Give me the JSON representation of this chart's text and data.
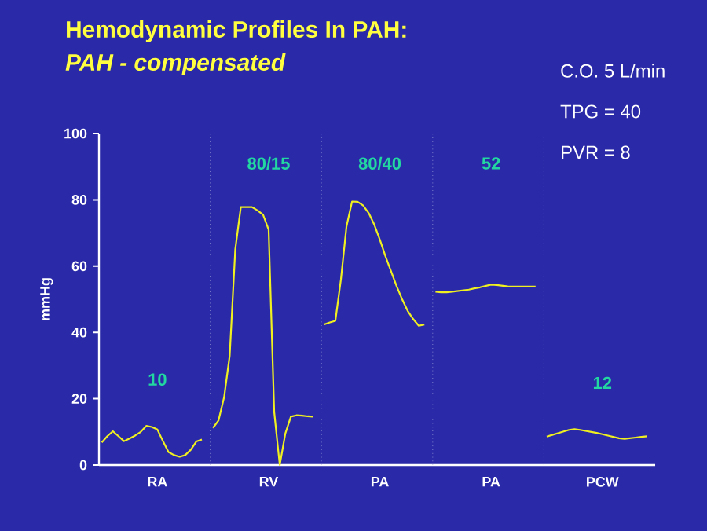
{
  "chart_data": {
    "type": "line",
    "title": "Hemodynamic Profiles In PAH:",
    "subtitle": "PAH - compensated",
    "ylabel": "mmHg",
    "categories": [
      null,
      null,
      null,
      null,
      null,
      null,
      null,
      null,
      null,
      null,
      "RA",
      null,
      null,
      null,
      null,
      null,
      null,
      null,
      null,
      null,
      null,
      null,
      null,
      null,
      null,
      null,
      null,
      null,
      null,
      null,
      "RV",
      null,
      null,
      null,
      null,
      null,
      null,
      null,
      null,
      null,
      null,
      null,
      null,
      null,
      null,
      null,
      null,
      null,
      null,
      null,
      "PA",
      null,
      null,
      null,
      null,
      null,
      null,
      null,
      null,
      null,
      null,
      null,
      null,
      null,
      null,
      null,
      null,
      null,
      null,
      null,
      "PA",
      null,
      null,
      null,
      null,
      null,
      null,
      null,
      null,
      null,
      null,
      null,
      null,
      null,
      null,
      null,
      null,
      null,
      null,
      null,
      "PCW",
      null,
      null,
      null,
      null,
      null,
      null,
      null,
      null,
      null
    ],
    "ylim": [
      0,
      100
    ],
    "yticks": [
      0,
      20,
      40,
      60,
      80,
      100
    ],
    "series": [
      {
        "color": "#f0f020",
        "values": [
          6.8,
          8.7,
          10.2,
          8.7,
          7.2,
          8.0,
          8.9,
          10.0,
          11.8,
          11.5,
          10.7,
          7.2,
          3.9,
          3.0,
          2.5,
          3.0,
          4.6,
          7.1,
          7.7,
          null,
          11.2,
          13.5,
          20.5,
          33,
          65,
          77.8,
          77.8,
          77.8,
          76.8,
          75.5,
          71,
          16,
          0,
          9.5,
          14.6,
          15,
          14.9,
          14.7,
          14.6,
          null,
          42.4,
          43,
          43.5,
          56,
          72,
          79.5,
          79.4,
          78.3,
          76,
          72.5,
          68,
          63,
          58.5,
          54,
          50,
          46.5,
          44,
          42,
          42.4,
          null,
          52.3,
          52.1,
          52.1,
          52.3,
          52.5,
          52.7,
          52.9,
          53.3,
          53.6,
          54,
          54.4,
          54.3,
          54.1,
          53.9,
          53.8,
          53.8,
          53.8,
          53.8,
          53.8,
          null,
          8.6,
          9.1,
          9.6,
          10.1,
          10.6,
          10.8,
          10.6,
          10.3,
          10,
          9.7,
          9.3,
          8.9,
          8.5,
          8.1,
          7.9,
          8.1,
          8.3,
          8.5,
          8.7,
          null
        ]
      }
    ],
    "annotations": [
      "10",
      "80/15",
      "80/40",
      "52",
      "12",
      "C.O. 5 L/min",
      "TPG = 40",
      "PVR = 8"
    ]
  }
}
